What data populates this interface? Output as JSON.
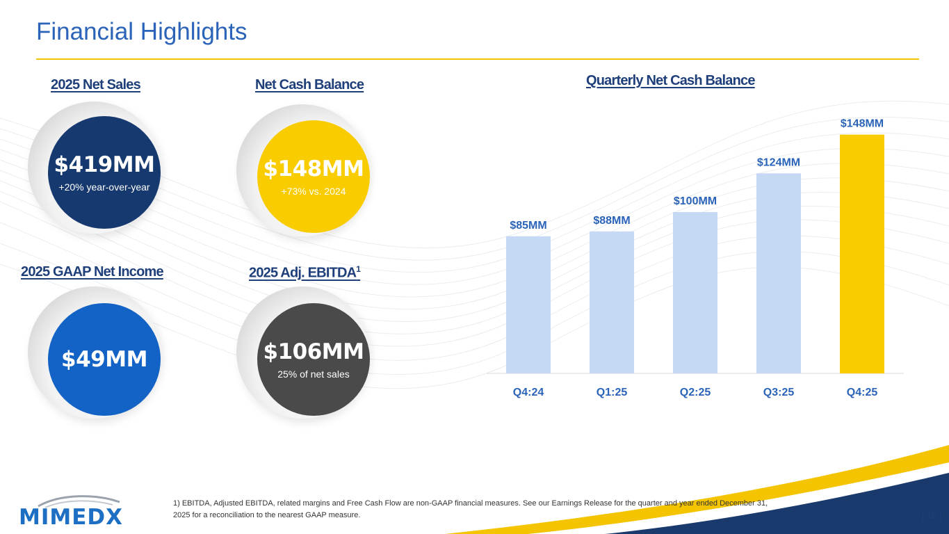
{
  "page": {
    "title": "Financial Highlights",
    "page_number": "| 18 |"
  },
  "kpis": [
    {
      "heading": "2025 Net Sales",
      "value": "$419MM",
      "sub": "+20% year-over-year",
      "color": "#163a70"
    },
    {
      "heading": "Net Cash Balance",
      "value": "$148MM",
      "sub": "+73% vs. 2024",
      "color": "#f9cc00"
    },
    {
      "heading": "2025 GAAP Net Income",
      "value": "$49MM",
      "sub": "",
      "color": "#1362c6"
    },
    {
      "heading": "2025 Adj. EBITDA",
      "heading_sup": "1",
      "value": "$106MM",
      "sub": "25% of net sales",
      "color": "#4a4a4a"
    }
  ],
  "chart_title": "Quarterly Net Cash Balance",
  "chart_data": {
    "type": "bar",
    "title": "Quarterly Net Cash Balance",
    "categories": [
      "Q4:24",
      "Q1:25",
      "Q2:25",
      "Q3:25",
      "Q4:25"
    ],
    "values": [
      85,
      88,
      100,
      124,
      148
    ],
    "data_labels": [
      "$85MM",
      "$88MM",
      "$100MM",
      "$124MM",
      "$148MM"
    ],
    "bar_colors": [
      "#c5d9f5",
      "#c5d9f5",
      "#c5d9f5",
      "#c5d9f5",
      "#f9cc00"
    ],
    "label_color": "#2a63b8",
    "ylim": [
      0,
      150
    ],
    "grid": false,
    "xlabel": "",
    "ylabel": ""
  },
  "footnote": "1) EBITDA, Adjusted EBITDA, related margins and Free Cash Flow are non-GAAP financial measures. See our Earnings Release for the quarter and year ended December 31, 2025 for a reconciliation to the nearest GAAP measure.",
  "logo": {
    "text": "MIMEDX",
    "color": "#1d6fc4"
  },
  "colors": {
    "accent_yellow": "#f5c400",
    "navy": "#1e3f7a",
    "blue": "#2a63b8"
  }
}
